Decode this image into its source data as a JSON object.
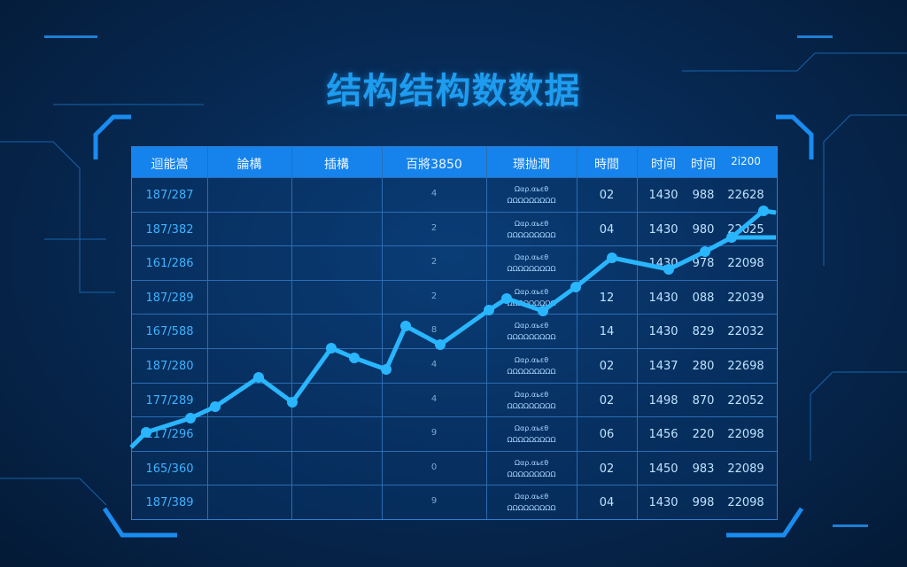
{
  "title": "结构结构数数据",
  "colors": {
    "accent": "#1e9cf0",
    "header": "#1683ec",
    "line": "#29b6ff"
  },
  "table": {
    "headers": [
      "迴能嵩",
      "論構",
      "插構",
      "百將3850",
      "璟抛潤",
      "時間",
      "时间",
      "时间",
      "2i200"
    ],
    "rows": [
      {
        "id": "187/287",
        "n": "4",
        "note1": "Ωαρ.αьεθ",
        "note2": "ΩΩΩΩΩΩΩΩΩ",
        "a": "02",
        "b": "1430",
        "c": "988",
        "d": "22628"
      },
      {
        "id": "187/382",
        "n": "2",
        "note1": "Ωαρ.αьεθ",
        "note2": "ΩΩΩΩΩΩΩΩΩ",
        "a": "04",
        "b": "1430",
        "c": "980",
        "d": "22025"
      },
      {
        "id": "161/286",
        "n": "2",
        "note1": "Ωαρ.αьεθ",
        "note2": "ΩΩΩΩΩΩΩΩΩ",
        "a": "",
        "b": "1430",
        "c": "978",
        "d": "22098"
      },
      {
        "id": "187/289",
        "n": "2",
        "note1": "Ωαρ.αьεθ",
        "note2": "ΩΩΩΩΩΩΩΩΩ",
        "a": "12",
        "b": "1430",
        "c": "088",
        "d": "22039"
      },
      {
        "id": "167/588",
        "n": "8",
        "note1": "Ωαρ.αьεθ",
        "note2": "ΩΩΩΩΩΩΩΩΩ",
        "a": "14",
        "b": "1430",
        "c": "829",
        "d": "22032"
      },
      {
        "id": "187/280",
        "n": "4",
        "note1": "Ωαρ.αьεθ",
        "note2": "ΩΩΩΩΩΩΩΩΩ",
        "a": "02",
        "b": "1437",
        "c": "280",
        "d": "22698"
      },
      {
        "id": "177/289",
        "n": "4",
        "note1": "Ωαρ.αьεθ",
        "note2": "ΩΩΩΩΩΩΩΩΩ",
        "a": "02",
        "b": "1498",
        "c": "870",
        "d": "22052"
      },
      {
        "id": "117/296",
        "n": "9",
        "note1": "Ωαρ.αьεθ",
        "note2": "ΩΩΩΩΩΩΩΩΩ",
        "a": "06",
        "b": "1456",
        "c": "220",
        "d": "22098"
      },
      {
        "id": "165/360",
        "n": "0",
        "note1": "Ωαρ.αьεθ",
        "note2": "ΩΩΩΩΩΩΩΩΩ",
        "a": "02",
        "b": "1450",
        "c": "983",
        "d": "22089"
      },
      {
        "id": "187/389",
        "n": "9",
        "note1": "Ωαρ.αьεθ",
        "note2": "ΩΩΩΩΩΩΩΩΩ",
        "a": "04",
        "b": "1430",
        "c": "998",
        "d": "22098"
      }
    ]
  }
}
